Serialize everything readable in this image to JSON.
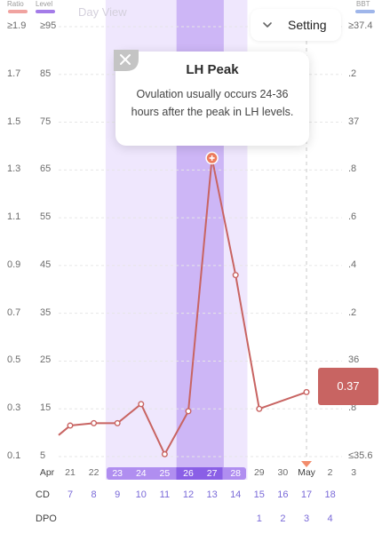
{
  "legend": {
    "ratio_label": "Ratio",
    "level_label": "Level",
    "bbt_label": "BBT",
    "ratio_color": "#f0a3a0",
    "level_color": "#a47ce8",
    "bbt_color": "#9fb6ea"
  },
  "header": {
    "view_label": "Day View",
    "setting_label": "Setting"
  },
  "left_axis": {
    "ratio_ticks": [
      "≥1.9",
      "1.7",
      "1.5",
      "1.3",
      "1.1",
      "0.9",
      "0.7",
      "0.5",
      "0.3",
      "0.1"
    ],
    "level_ticks": [
      "≥95",
      "85",
      "75",
      "65",
      "55",
      "45",
      "35",
      "25",
      "15",
      "5"
    ]
  },
  "right_axis": {
    "ticks": [
      "≥37.4",
      ".2",
      "37",
      ".8",
      ".6",
      ".4",
      ".2",
      "36",
      ".8",
      "≤35.6"
    ]
  },
  "tooltip": {
    "title": "LH Peak",
    "body": "Ovulation usually occurs 24-36 hours after the peak in LH levels."
  },
  "value_badge": "0.37",
  "x_axis": {
    "dates": [
      "Apr",
      "21",
      "22",
      "23",
      "24",
      "25",
      "26",
      "27",
      "28",
      "29",
      "30",
      "May",
      "2",
      "3"
    ],
    "highlighted_dates": [
      "23",
      "24",
      "25",
      "26",
      "27",
      "28"
    ]
  },
  "cd_row": {
    "label": "CD",
    "values": [
      "7",
      "8",
      "9",
      "10",
      "11",
      "12",
      "13",
      "14",
      "15",
      "16",
      "17",
      "18"
    ]
  },
  "dpo_row": {
    "label": "DPO",
    "values": [
      "1",
      "2",
      "3",
      "4"
    ]
  },
  "chart_data": {
    "type": "line",
    "x": [
      "21",
      "22",
      "23",
      "24",
      "25",
      "26",
      "27",
      "28",
      "29",
      "30",
      "May",
      "2"
    ],
    "series": [
      {
        "values": [
          0.23,
          0.24,
          0.24,
          0.32,
          0.11,
          0.29,
          1.35,
          0.86,
          0.3,
          null,
          0.37,
          null
        ]
      }
    ],
    "ylim": [
      0.1,
      1.9
    ],
    "highlight_ranges": [
      [
        "23",
        "28"
      ],
      [
        "26",
        "27"
      ]
    ],
    "marker_label": "LH Peak",
    "grid": true,
    "colors": {
      "line": "#c86462",
      "peak_marker": "#ee7b5c",
      "light_band": "#efe7fd",
      "dark_band": "#cdb6f6"
    }
  }
}
